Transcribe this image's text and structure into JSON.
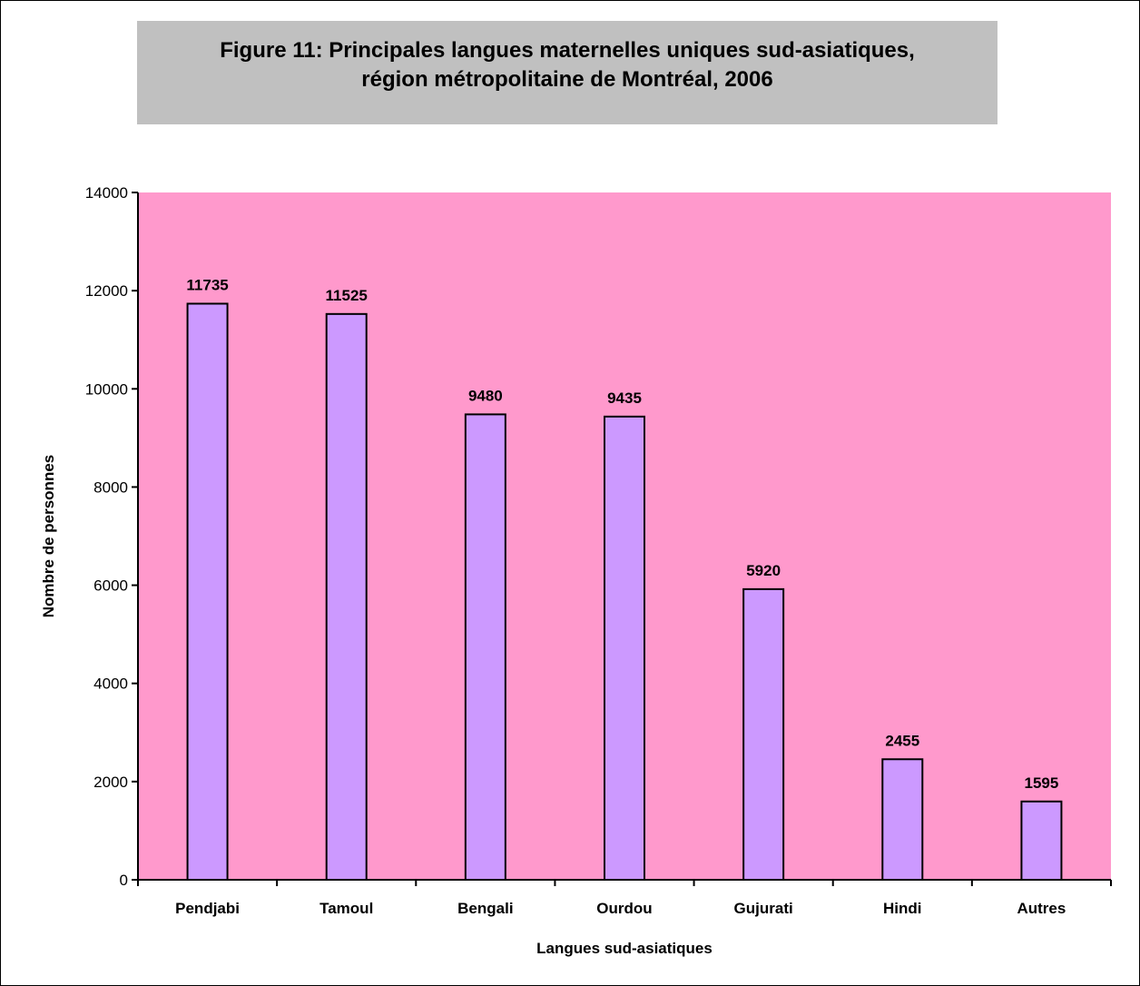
{
  "chart_data": {
    "type": "bar",
    "title_line1": "Figure 11: Principales langues maternelles uniques sud-asiatiques,",
    "title_line2": "région métropolitaine de Montréal, 2006",
    "xlabel": "Langues sud-asiatiques",
    "ylabel": "Nombre de personnes",
    "categories": [
      "Pendjabi",
      "Tamoul",
      "Bengali",
      "Ourdou",
      "Gujurati",
      "Hindi",
      "Autres"
    ],
    "values": [
      11735,
      11525,
      9480,
      9435,
      5920,
      2455,
      1595
    ],
    "data_labels": [
      "11735",
      "11525",
      "9480",
      "9435",
      "5920",
      "2455",
      "1595"
    ],
    "ylim": [
      0,
      14000
    ],
    "yticks": [
      "0",
      "2000",
      "4000",
      "6000",
      "8000",
      "10000",
      "12000",
      "14000"
    ],
    "grid": false,
    "legend": "none",
    "colors": {
      "plot_background": "#ff99cc",
      "bar_fill": "#cc99ff",
      "bar_stroke": "#000000",
      "title_background": "#c0c0c0"
    }
  }
}
